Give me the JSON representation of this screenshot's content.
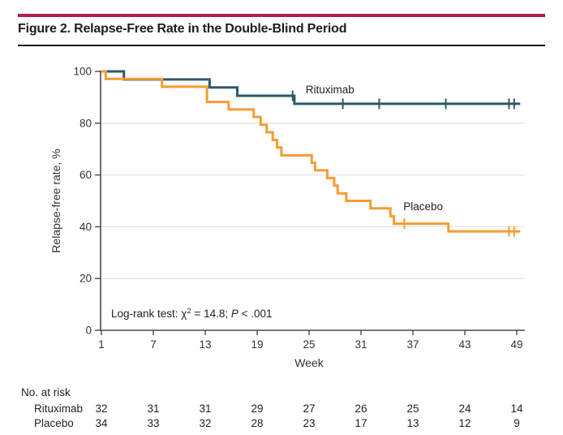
{
  "figure": {
    "title": "Figure 2. Relapse-Free Rate in the Double-Blind Period",
    "accent_color": "#AE1E45"
  },
  "chart_data": {
    "type": "line",
    "subtype": "kaplan-meier-step",
    "title": "Relapse-Free Rate in the Double-Blind Period",
    "xlabel": "Week",
    "ylabel": "Relapse-free rate, %",
    "xticks": [
      1,
      7,
      13,
      19,
      25,
      31,
      37,
      43,
      49
    ],
    "yticks": [
      0,
      20,
      40,
      60,
      80,
      100
    ],
    "xlim": [
      1,
      49.4
    ],
    "ylim": [
      0,
      100
    ],
    "grid": "horizontal gridlines at 20, 40, 60, 80",
    "legend_position": "inline curve labels",
    "colors": {
      "axis": "#4a4a4a",
      "grid": "#e4e3e0",
      "text": "#333333"
    },
    "annotation": {
      "prefix": "Log-rank test: χ",
      "sup": "2",
      "mid": " = 14.8; ",
      "italic": "P",
      "suffix": " < .001"
    },
    "series": [
      {
        "name": "Rituximab",
        "color": "#2E5966",
        "label_pos": {
          "week": 24.6,
          "pct": 91.5
        },
        "steps": [
          [
            1,
            100
          ],
          [
            3.6,
            96.9
          ],
          [
            13.5,
            93.8
          ],
          [
            16.7,
            90.6
          ],
          [
            23.3,
            87.5
          ],
          [
            49.4,
            87.5
          ]
        ],
        "censors": [
          [
            23.1,
            90.6
          ],
          [
            28.9,
            87.5
          ],
          [
            33.1,
            87.5
          ],
          [
            40.8,
            87.5
          ],
          [
            48.1,
            87.5
          ],
          [
            48.7,
            87.5
          ]
        ]
      },
      {
        "name": "Placebo",
        "color": "#F49D33",
        "label_pos": {
          "week": 35.9,
          "pct": 46.4
        },
        "steps": [
          [
            1,
            100
          ],
          [
            1.5,
            97.1
          ],
          [
            8,
            94.1
          ],
          [
            13.2,
            88.2
          ],
          [
            15.7,
            85.3
          ],
          [
            18.6,
            82.4
          ],
          [
            19.4,
            79.4
          ],
          [
            20.1,
            76.5
          ],
          [
            20.8,
            73.5
          ],
          [
            21.3,
            70.6
          ],
          [
            21.8,
            67.6
          ],
          [
            25.3,
            64.7
          ],
          [
            25.7,
            61.8
          ],
          [
            27.1,
            58.8
          ],
          [
            27.9,
            55.9
          ],
          [
            28.3,
            52.9
          ],
          [
            29.3,
            50
          ],
          [
            32.1,
            47.1
          ],
          [
            34.4,
            44.1
          ],
          [
            34.8,
            41.2
          ],
          [
            41.1,
            38.2
          ],
          [
            49.4,
            38.2
          ]
        ],
        "censors": [
          [
            36,
            41.2
          ],
          [
            48.1,
            38.2
          ],
          [
            48.7,
            38.2
          ]
        ]
      }
    ]
  },
  "risk_table": {
    "title": "No. at risk",
    "weeks": [
      1,
      7,
      13,
      19,
      25,
      31,
      37,
      43,
      49
    ],
    "rows": [
      {
        "label": "Rituximab",
        "values": [
          32,
          31,
          31,
          29,
          27,
          26,
          25,
          24,
          14
        ]
      },
      {
        "label": "Placebo",
        "values": [
          34,
          33,
          32,
          28,
          23,
          17,
          13,
          12,
          9
        ]
      }
    ]
  }
}
